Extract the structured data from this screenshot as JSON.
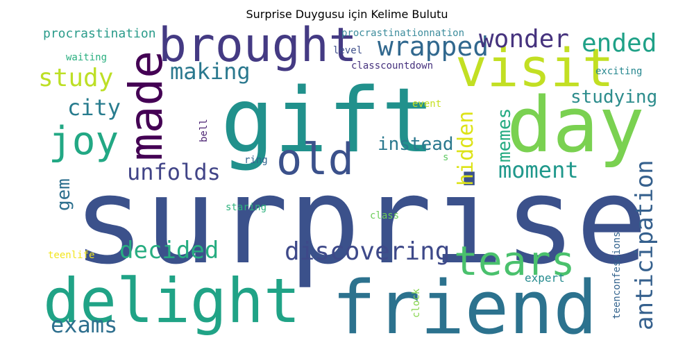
{
  "chart_data": {
    "type": "wordcloud",
    "title": "Surprise Duygusu için Kelime Bulutu",
    "words": [
      {
        "text": "surprise",
        "color": "#3b518b"
      },
      {
        "text": "gift",
        "color": "#21918c"
      },
      {
        "text": "day",
        "color": "#7ad151"
      },
      {
        "text": "friend",
        "color": "#2c728e"
      },
      {
        "text": "delight",
        "color": "#20a386"
      },
      {
        "text": "visit",
        "color": "#c2df23"
      },
      {
        "text": "brought",
        "color": "#443a83"
      },
      {
        "text": "made",
        "color": "#440154"
      },
      {
        "text": "old",
        "color": "#3b518b"
      },
      {
        "text": "tears",
        "color": "#4ac16d"
      },
      {
        "text": "joy",
        "color": "#22a884"
      },
      {
        "text": "wrapped",
        "color": "#31688e"
      },
      {
        "text": "wonder",
        "color": "#46337e"
      },
      {
        "text": "ended",
        "color": "#1fa187"
      },
      {
        "text": "study",
        "color": "#bddf26"
      },
      {
        "text": "making",
        "color": "#2a788e"
      },
      {
        "text": "city",
        "color": "#287c8e"
      },
      {
        "text": "discovering",
        "color": "#3e4989"
      },
      {
        "text": "decided",
        "color": "#27ad81"
      },
      {
        "text": "anticipation",
        "color": "#35608d"
      },
      {
        "text": "exams",
        "color": "#2e6f8e"
      },
      {
        "text": "unfolds",
        "color": "#414487"
      },
      {
        "text": "moment",
        "color": "#1f988b"
      },
      {
        "text": "instead",
        "color": "#2a788e"
      },
      {
        "text": "hidden",
        "color": "#dde318"
      },
      {
        "text": "memes",
        "color": "#25ab82"
      },
      {
        "text": "studying",
        "color": "#2c8c8c"
      },
      {
        "text": "gem",
        "color": "#2d708e"
      },
      {
        "text": "procrastination",
        "color": "#2a9b8a"
      },
      {
        "text": "procrastinationnation",
        "color": "#3c8c9c"
      },
      {
        "text": "level",
        "color": "#3d4e8a"
      },
      {
        "text": "classcountdown",
        "color": "#46327e"
      },
      {
        "text": "waiting",
        "color": "#29af7f"
      },
      {
        "text": "exciting",
        "color": "#24868e"
      },
      {
        "text": "event",
        "color": "#c6e021"
      },
      {
        "text": "bell",
        "color": "#481f70"
      },
      {
        "text": "ring",
        "color": "#32648e"
      },
      {
        "text": "s",
        "color": "#5ec962"
      },
      {
        "text": "staring",
        "color": "#2db27d"
      },
      {
        "text": "class",
        "color": "#6ccd5a"
      },
      {
        "text": "teenlife",
        "color": "#f2e51d"
      },
      {
        "text": "teenconfessions",
        "color": "#33638d"
      },
      {
        "text": "expert",
        "color": "#238a8d"
      },
      {
        "text": "clock",
        "color": "#84d44b"
      }
    ]
  }
}
